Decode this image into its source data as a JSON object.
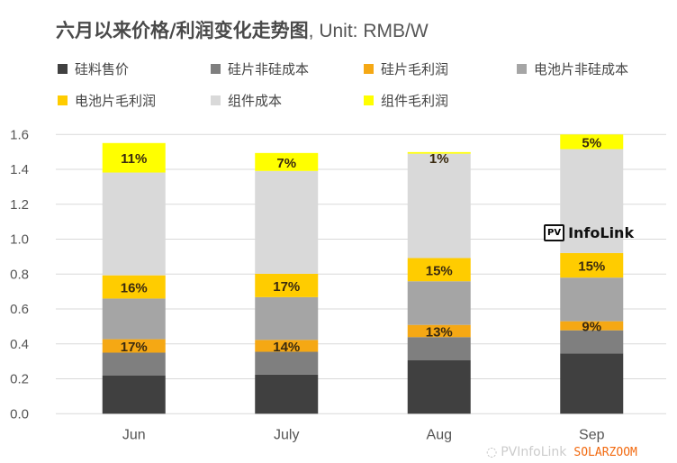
{
  "chart_data": {
    "type": "bar",
    "stacked": true,
    "title": "六月以来价格/利润变化走势图",
    "title_unit": ", Unit: RMB/W",
    "categories": [
      "Jun",
      "July",
      "Aug",
      "Sep"
    ],
    "ylim": [
      0,
      1.6
    ],
    "yticks": [
      "0.0",
      "0.2",
      "0.4",
      "0.6",
      "0.8",
      "1.0",
      "1.2",
      "1.4",
      "1.6"
    ],
    "grid": true,
    "legend_position": "top",
    "series": [
      {
        "name": "硅料售价",
        "color": "#404040",
        "values": [
          0.22,
          0.224,
          0.306,
          0.346
        ],
        "labels": [
          "",
          "",
          "",
          ""
        ]
      },
      {
        "name": "硅片非硅成本",
        "color": "#7f7f7f",
        "values": [
          0.13,
          0.131,
          0.133,
          0.132
        ],
        "labels": [
          "",
          "",
          "",
          ""
        ]
      },
      {
        "name": "硅片毛利润",
        "color": "#f5a814",
        "values": [
          0.077,
          0.068,
          0.07,
          0.052
        ],
        "labels": [
          "17%",
          "14%",
          "13%",
          "9%"
        ]
      },
      {
        "name": "电池片非硅成本",
        "color": "#a5a5a5",
        "values": [
          0.233,
          0.245,
          0.25,
          0.25
        ],
        "labels": [
          "",
          "",
          "",
          ""
        ]
      },
      {
        "name": "电池片毛利润",
        "color": "#ffcc00",
        "values": [
          0.133,
          0.134,
          0.133,
          0.141
        ],
        "labels": [
          "16%",
          "17%",
          "15%",
          "15%"
        ]
      },
      {
        "name": "组件成本",
        "color": "#d9d9d9",
        "values": [
          0.589,
          0.589,
          0.598,
          0.595
        ],
        "labels": [
          "",
          "",
          "",
          ""
        ]
      },
      {
        "name": "组件毛利润",
        "color": "#ffff00",
        "values": [
          0.169,
          0.103,
          0.009,
          0.084
        ],
        "labels": [
          "11%",
          "7%",
          "1%",
          "5%"
        ]
      }
    ]
  },
  "watermarks": {
    "logo_pv": "PV",
    "logo_text": "InfoLink",
    "bottom_brand": "SOLARZOOM",
    "bottom_faded": "PVInfoLink"
  }
}
